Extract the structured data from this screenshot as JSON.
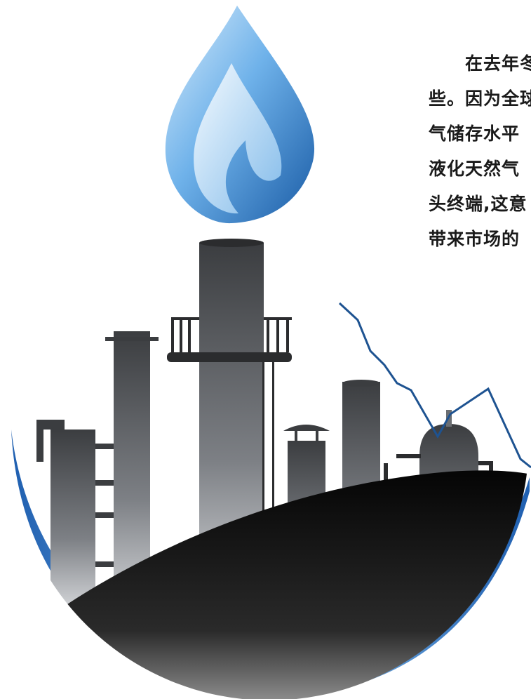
{
  "article": {
    "lines": [
      "在去年冬",
      "些。因为全球",
      "气储存水平",
      "液化天然气",
      "头终端,这意",
      "带来市场的"
    ]
  },
  "colors": {
    "flame_light": "#a9d3f2",
    "flame_dark": "#1a5ca6",
    "trend_line": "#1e5391",
    "ground_dark": "#0d0d0d",
    "bowl_blue": "#2a6fc0"
  }
}
